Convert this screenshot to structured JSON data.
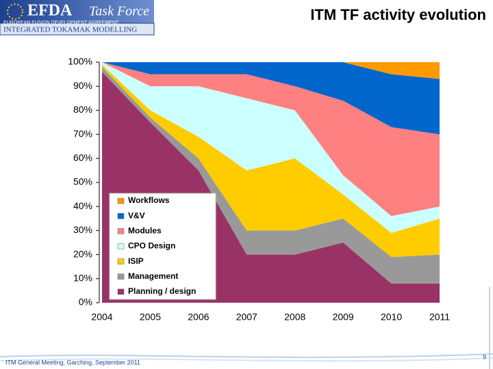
{
  "header": {
    "logo": "EFDA",
    "logo_sub": "Task Force",
    "agreement": "EUROPEAN FUSION DEVELOPMENT AGREEMENT",
    "project": "INTEGRATED TOKAMAK MODELLING"
  },
  "footer": {
    "text": "ITM General Meeting, Garching, September 2011",
    "page": "9"
  },
  "chart_data": {
    "type": "stacked_area",
    "title": "ITM TF activity evolution",
    "categories": [
      "2004",
      "2005",
      "2006",
      "2007",
      "2008",
      "2009",
      "2010",
      "2011"
    ],
    "series": [
      {
        "name": "Planning / design",
        "color": "#993366",
        "values": [
          96,
          75,
          55,
          20,
          20,
          25,
          8,
          8
        ]
      },
      {
        "name": "Management",
        "color": "#999999",
        "values": [
          2,
          2,
          5,
          10,
          10,
          10,
          11,
          12
        ]
      },
      {
        "name": "ISIP",
        "color": "#ffcc00",
        "values": [
          1,
          3,
          9,
          25,
          30,
          10,
          10,
          15
        ]
      },
      {
        "name": "CPO Design",
        "color": "#ccffff",
        "values": [
          1,
          10,
          21,
          30,
          20,
          8,
          7,
          5
        ]
      },
      {
        "name": "Modules",
        "color": "#ff8080",
        "values": [
          0,
          5,
          5,
          10,
          10,
          31,
          37,
          30
        ]
      },
      {
        "name": "V&V",
        "color": "#0066cc",
        "values": [
          0,
          5,
          5,
          5,
          10,
          16,
          22,
          23
        ]
      },
      {
        "name": "Workflows",
        "color": "#ff9900",
        "values": [
          0,
          0,
          0,
          0,
          0,
          0,
          5,
          7
        ]
      }
    ],
    "ylim": [
      0,
      100
    ],
    "yticks": [
      {
        "value": 0,
        "label": "0%"
      },
      {
        "value": 10,
        "label": "10%"
      },
      {
        "value": 20,
        "label": "20%"
      },
      {
        "value": 30,
        "label": "30%"
      },
      {
        "value": 40,
        "label": "40%"
      },
      {
        "value": 50,
        "label": "50%"
      },
      {
        "value": 60,
        "label": "60%"
      },
      {
        "value": 70,
        "label": "70%"
      },
      {
        "value": 80,
        "label": "80%"
      },
      {
        "value": 90,
        "label": "90%"
      },
      {
        "value": 100,
        "label": "100%"
      }
    ],
    "legend": "inside-lower-left"
  }
}
